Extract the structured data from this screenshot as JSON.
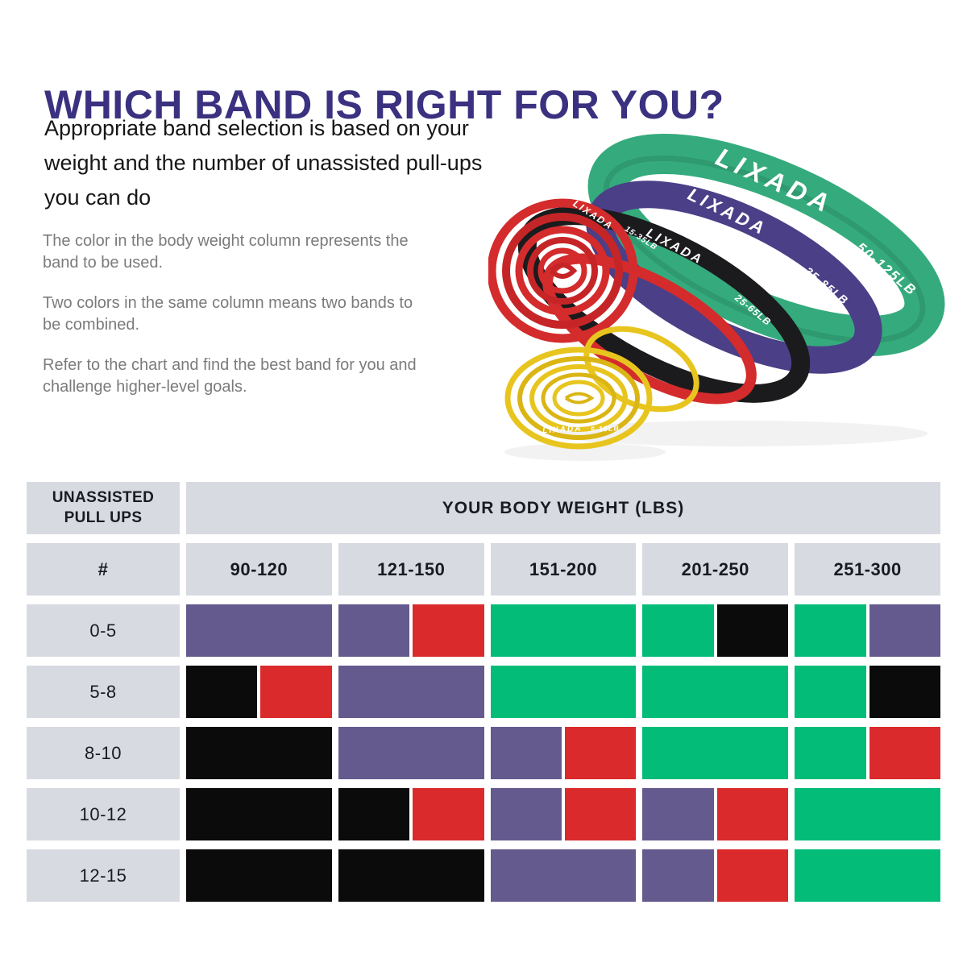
{
  "page": {
    "title": "WHICH BAND IS RIGHT FOR YOU?",
    "title_color": "#3a3180",
    "subtitle_lines": [
      "Appropriate band selection is based on your",
      "weight and the number of unassisted pull-ups",
      "you can do"
    ],
    "notes": [
      [
        "The color in the body weight column represents the",
        "band to be used."
      ],
      [
        "Two colors in the same column means two bands to",
        "be combined."
      ],
      [
        "Refer to the chart and find the best band for you and",
        "challenge higher-level goals."
      ]
    ]
  },
  "bands": [
    {
      "id": "green",
      "brand": "LIXADA",
      "label": "50-125LB",
      "color": "#35ab7d"
    },
    {
      "id": "purple",
      "brand": "LIXADA",
      "label": "35-85LB",
      "color": "#4b3f87"
    },
    {
      "id": "black",
      "brand": "LIXADA",
      "label": "25-65LB",
      "color": "#1b1b1d"
    },
    {
      "id": "red",
      "brand": "LIXADA",
      "label": "15-35LB",
      "color": "#d42b2c"
    },
    {
      "id": "yellow",
      "brand": "LIXADA",
      "label": "5-15LB",
      "color": "#e8c51e"
    }
  ],
  "chart_data": {
    "type": "table",
    "title": "YOUR BODY WEIGHT (LBS)",
    "row_axis_header": "UNASSISTED\nPULL UPS",
    "row_axis_symbol": "#",
    "columns": [
      "90-120",
      "121-150",
      "151-200",
      "201-250",
      "251-300"
    ],
    "rows": [
      {
        "pullups": "0-5",
        "cells": [
          [
            "purple"
          ],
          [
            "purple",
            "red"
          ],
          [
            "green"
          ],
          [
            "green",
            "black"
          ],
          [
            "green",
            "purple"
          ]
        ]
      },
      {
        "pullups": "5-8",
        "cells": [
          [
            "black",
            "red"
          ],
          [
            "purple"
          ],
          [
            "green"
          ],
          [
            "green"
          ],
          [
            "green",
            "black"
          ]
        ]
      },
      {
        "pullups": "8-10",
        "cells": [
          [
            "black"
          ],
          [
            "purple"
          ],
          [
            "purple",
            "red"
          ],
          [
            "green"
          ],
          [
            "green",
            "red"
          ]
        ]
      },
      {
        "pullups": "10-12",
        "cells": [
          [
            "black"
          ],
          [
            "black",
            "red"
          ],
          [
            "purple",
            "red"
          ],
          [
            "purple",
            "red"
          ],
          [
            "green"
          ]
        ]
      },
      {
        "pullups": "12-15",
        "cells": [
          [
            "black"
          ],
          [
            "black"
          ],
          [
            "purple"
          ],
          [
            "purple",
            "red"
          ],
          [
            "green"
          ]
        ]
      }
    ],
    "cell_colors": {
      "purple": "#655a8e",
      "red": "#da2a2b",
      "green": "#03bc78",
      "black": "#0b0b0b",
      "gray_header": "#d8dae1"
    }
  }
}
